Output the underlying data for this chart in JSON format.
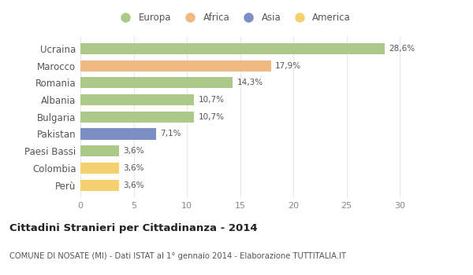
{
  "categories": [
    "Ucraina",
    "Marocco",
    "Romania",
    "Albania",
    "Bulgaria",
    "Pakistan",
    "Paesi Bassi",
    "Colombia",
    "Perù"
  ],
  "values": [
    28.6,
    17.9,
    14.3,
    10.7,
    10.7,
    7.1,
    3.6,
    3.6,
    3.6
  ],
  "labels": [
    "28,6%",
    "17,9%",
    "14,3%",
    "10,7%",
    "10,7%",
    "7,1%",
    "3,6%",
    "3,6%",
    "3,6%"
  ],
  "colors": [
    "#adc98a",
    "#f0b882",
    "#adc98a",
    "#adc98a",
    "#adc98a",
    "#7b8fc4",
    "#adc98a",
    "#f5d06e",
    "#f5d06e"
  ],
  "legend": [
    {
      "label": "Europa",
      "color": "#adc98a"
    },
    {
      "label": "Africa",
      "color": "#f0b882"
    },
    {
      "label": "Asia",
      "color": "#7b8fc4"
    },
    {
      "label": "America",
      "color": "#f5d06e"
    }
  ],
  "title": "Cittadini Stranieri per Cittadinanza - 2014",
  "subtitle": "COMUNE DI NOSATE (MI) - Dati ISTAT al 1° gennaio 2014 - Elaborazione TUTTITALIA.IT",
  "xlim": [
    0,
    32
  ],
  "xticks": [
    0,
    5,
    10,
    15,
    20,
    25,
    30
  ],
  "bg_color": "#ffffff",
  "grid_color": "#e8e8e8"
}
